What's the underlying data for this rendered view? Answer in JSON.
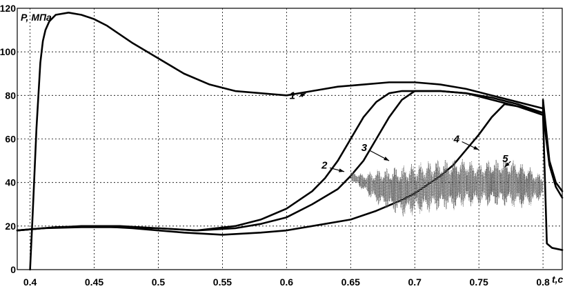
{
  "chart_data": {
    "type": "line",
    "ylabel": "P, МПа",
    "xlabel": "t,c",
    "xlim": [
      0.39,
      0.815
    ],
    "ylim": [
      0,
      120
    ],
    "grid": true,
    "xticks": [
      0.4,
      0.45,
      0.5,
      0.55,
      0.6,
      0.65,
      0.7,
      0.75,
      0.8
    ],
    "xtick_labels": [
      "0.4",
      "0.45",
      "0.5",
      "0.55",
      "0.6",
      "0.65",
      "0.7",
      "0.75",
      "0.8"
    ],
    "yticks": [
      0,
      20,
      40,
      60,
      80,
      100,
      120
    ],
    "ytick_labels": [
      "0",
      "20",
      "40",
      "60",
      "80",
      "100",
      "120"
    ],
    "series": [
      {
        "name": "1",
        "style": "solid",
        "x": [
          0.4,
          0.402,
          0.405,
          0.408,
          0.41,
          0.412,
          0.415,
          0.42,
          0.43,
          0.44,
          0.45,
          0.46,
          0.47,
          0.48,
          0.5,
          0.52,
          0.54,
          0.56,
          0.58,
          0.6,
          0.62,
          0.64,
          0.66,
          0.68,
          0.7,
          0.72,
          0.74,
          0.76,
          0.78,
          0.8
        ],
        "y": [
          0,
          25,
          65,
          95,
          105,
          110,
          114,
          117,
          118,
          117,
          115,
          112,
          108,
          104,
          97,
          90,
          85,
          82,
          81,
          80,
          82,
          84,
          85,
          86,
          86,
          85,
          83,
          80,
          77,
          74
        ]
      },
      {
        "name": "2",
        "style": "solid",
        "x": [
          0.39,
          0.41,
          0.44,
          0.47,
          0.5,
          0.53,
          0.56,
          0.58,
          0.6,
          0.62,
          0.63,
          0.64,
          0.65,
          0.66,
          0.67,
          0.68,
          0.69,
          0.7,
          0.72,
          0.74,
          0.76,
          0.78,
          0.8,
          0.8,
          0.805,
          0.81,
          0.815
        ],
        "y": [
          18,
          19,
          19.5,
          19.5,
          19,
          18,
          20,
          23,
          28,
          36,
          42,
          50,
          60,
          70,
          77,
          81,
          82,
          82,
          82,
          81,
          79,
          76,
          72,
          78,
          50,
          40,
          36
        ]
      },
      {
        "name": "3",
        "style": "solid",
        "x": [
          0.39,
          0.41,
          0.44,
          0.47,
          0.5,
          0.53,
          0.56,
          0.58,
          0.6,
          0.62,
          0.64,
          0.65,
          0.66,
          0.67,
          0.68,
          0.69,
          0.7,
          0.72,
          0.74,
          0.76,
          0.78,
          0.8,
          0.805,
          0.81,
          0.815
        ],
        "y": [
          18,
          19,
          20,
          20,
          19,
          18,
          19,
          21,
          24,
          30,
          37,
          43,
          50,
          60,
          70,
          78,
          82,
          82,
          81,
          78,
          75,
          72,
          48,
          38,
          33
        ]
      },
      {
        "name": "4",
        "style": "solid",
        "x": [
          0.39,
          0.42,
          0.45,
          0.48,
          0.5,
          0.52,
          0.55,
          0.58,
          0.6,
          0.63,
          0.65,
          0.67,
          0.69,
          0.7,
          0.72,
          0.73,
          0.74,
          0.75,
          0.76,
          0.77,
          0.78,
          0.8,
          0.803,
          0.807,
          0.815
        ],
        "y": [
          18,
          19.5,
          20,
          19,
          18,
          17,
          16,
          17,
          18,
          21,
          23,
          27,
          32,
          35,
          43,
          48,
          55,
          62,
          70,
          76,
          75,
          71,
          12,
          10,
          9
        ]
      },
      {
        "name": "5",
        "style": "dotted-oscillating",
        "x": [
          0.65,
          0.66,
          0.67,
          0.68,
          0.69,
          0.7,
          0.71,
          0.72,
          0.73,
          0.74,
          0.75,
          0.76,
          0.77,
          0.78,
          0.79,
          0.8
        ],
        "y": [
          43,
          40,
          38,
          37,
          36,
          37,
          38,
          39,
          39,
          40,
          39,
          40,
          40,
          39,
          38,
          38
        ],
        "amplitude": [
          2,
          4,
          8,
          10,
          12,
          12,
          12,
          12,
          12,
          11,
          10,
          11,
          11,
          11,
          9,
          5
        ]
      }
    ],
    "annotations": [
      {
        "text": "1",
        "x": 0.612,
        "y": 80
      },
      {
        "text": "2",
        "x": 0.637,
        "y": 48
      },
      {
        "text": "3",
        "x": 0.668,
        "y": 56
      },
      {
        "text": "4",
        "x": 0.74,
        "y": 60
      },
      {
        "text": "5",
        "x": 0.778,
        "y": 51
      }
    ]
  }
}
